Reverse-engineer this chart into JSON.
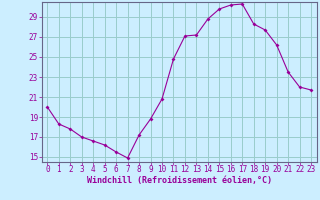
{
  "x": [
    0,
    1,
    2,
    3,
    4,
    5,
    6,
    7,
    8,
    9,
    10,
    11,
    12,
    13,
    14,
    15,
    16,
    17,
    18,
    19,
    20,
    21,
    22,
    23
  ],
  "y": [
    20.0,
    18.3,
    17.8,
    17.0,
    16.6,
    16.2,
    15.5,
    14.9,
    17.2,
    18.8,
    20.8,
    24.8,
    27.1,
    27.2,
    28.8,
    29.8,
    30.2,
    30.3,
    28.3,
    27.7,
    26.2,
    23.5,
    22.0,
    21.7
  ],
  "line_color": "#990099",
  "marker": "D",
  "marker_size": 2.0,
  "bg_color": "#cceeff",
  "grid_color": "#99cccc",
  "axis_color": "#666688",
  "tick_color": "#990099",
  "xlabel": "Windchill (Refroidissement éolien,°C)",
  "xlim": [
    -0.5,
    23.5
  ],
  "ylim": [
    14.5,
    30.5
  ],
  "yticks": [
    15,
    17,
    19,
    21,
    23,
    25,
    27,
    29
  ],
  "xticks": [
    0,
    1,
    2,
    3,
    4,
    5,
    6,
    7,
    8,
    9,
    10,
    11,
    12,
    13,
    14,
    15,
    16,
    17,
    18,
    19,
    20,
    21,
    22,
    23
  ],
  "font_color": "#990099",
  "label_fontsize": 5.5,
  "tick_fontsize": 5.5,
  "xlabel_fontsize": 6.0
}
